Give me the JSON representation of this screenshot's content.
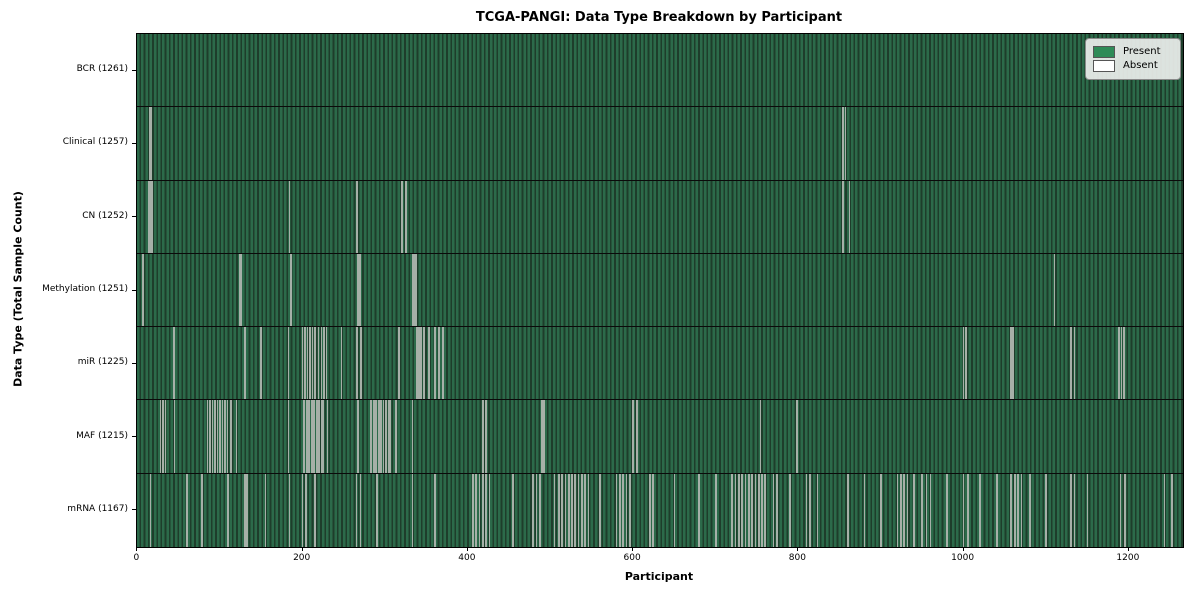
{
  "title": "TCGA-PANGI: Data Type Breakdown by Participant",
  "legend": {
    "present_label": "Present",
    "absent_label": "Absent"
  },
  "colors": {
    "present": "#2e8b57",
    "present_fill_light": "#2c6a4a",
    "present_fill_dark": "#1e3d2b",
    "absent": "#ffffff",
    "absent_stripe": "#a6b0a8",
    "legend_bg": "#ececec"
  },
  "chart_data": {
    "type": "heatmap",
    "title": "TCGA-PANGI: Data Type Breakdown by Participant",
    "xlabel": "Participant",
    "ylabel": "Data Type (Total Sample Count)",
    "legend_entries": [
      "Present",
      "Absent"
    ],
    "legend_position": "upper right",
    "grid": false,
    "total_participants": 1261,
    "x_ticks": [
      0,
      200,
      400,
      600,
      800,
      1000,
      1200
    ],
    "xlim": [
      0,
      1266
    ],
    "rows": [
      {
        "label": "BCR (1261)",
        "data_type": "BCR",
        "present_count": 1261,
        "absent_count": 0,
        "absent_positions": []
      },
      {
        "label": "Clinical (1257)",
        "data_type": "Clinical",
        "present_count": 1257,
        "absent_count": 4,
        "absent_positions": [
          15,
          17,
          854,
          857
        ]
      },
      {
        "label": "CN (1252)",
        "data_type": "CN",
        "present_count": 1252,
        "absent_count": 9,
        "absent_positions": [
          14,
          16,
          18,
          184,
          266,
          320,
          325,
          854,
          862
        ]
      },
      {
        "label": "Methylation (1251)",
        "data_type": "Methylation",
        "present_count": 1251,
        "absent_count": 10,
        "absent_positions": [
          7,
          124,
          126,
          186,
          267,
          269,
          333,
          335,
          337,
          1110
        ]
      },
      {
        "label": "miR (1225)",
        "data_type": "miR",
        "present_count": 1225,
        "absent_count": 36,
        "absent_positions": [
          44,
          130,
          150,
          183,
          200,
          203,
          206,
          209,
          212,
          215,
          219,
          223,
          226,
          229,
          247,
          266,
          271,
          317,
          338,
          340,
          342,
          344,
          347,
          353,
          360,
          365,
          370,
          1000,
          1003,
          1057,
          1060,
          1130,
          1134,
          1188,
          1191,
          1194
        ]
      },
      {
        "label": "MAF (1215)",
        "data_type": "MAF",
        "present_count": 1215,
        "absent_count": 46,
        "absent_positions": [
          28,
          31,
          34,
          45,
          85,
          88,
          91,
          94,
          97,
          100,
          103,
          106,
          109,
          113,
          120,
          183,
          202,
          205,
          208,
          211,
          214,
          217,
          220,
          223,
          225,
          230,
          267,
          283,
          286,
          289,
          292,
          295,
          298,
          301,
          304,
          306,
          313,
          333,
          418,
          422,
          490,
          492,
          600,
          605,
          754,
          798
        ]
      },
      {
        "label": "mRNA (1167)",
        "data_type": "mRNA",
        "present_count": 1167,
        "absent_count": 94,
        "absent_positions": [
          16,
          60,
          78,
          110,
          130,
          133,
          155,
          184,
          200,
          204,
          215,
          265,
          270,
          290,
          333,
          360,
          406,
          410,
          414,
          418,
          422,
          426,
          455,
          479,
          483,
          487,
          505,
          510,
          514,
          518,
          522,
          526,
          530,
          534,
          538,
          542,
          546,
          560,
          580,
          584,
          588,
          592,
          596,
          620,
          624,
          650,
          680,
          700,
          720,
          724,
          728,
          732,
          736,
          740,
          744,
          748,
          752,
          756,
          760,
          770,
          774,
          790,
          810,
          814,
          823,
          860,
          880,
          900,
          920,
          924,
          928,
          932,
          940,
          950,
          955,
          960,
          980,
          1000,
          1005,
          1020,
          1040,
          1057,
          1062,
          1066,
          1070,
          1080,
          1100,
          1130,
          1134,
          1150,
          1190,
          1195,
          1243,
          1252
        ]
      }
    ]
  }
}
